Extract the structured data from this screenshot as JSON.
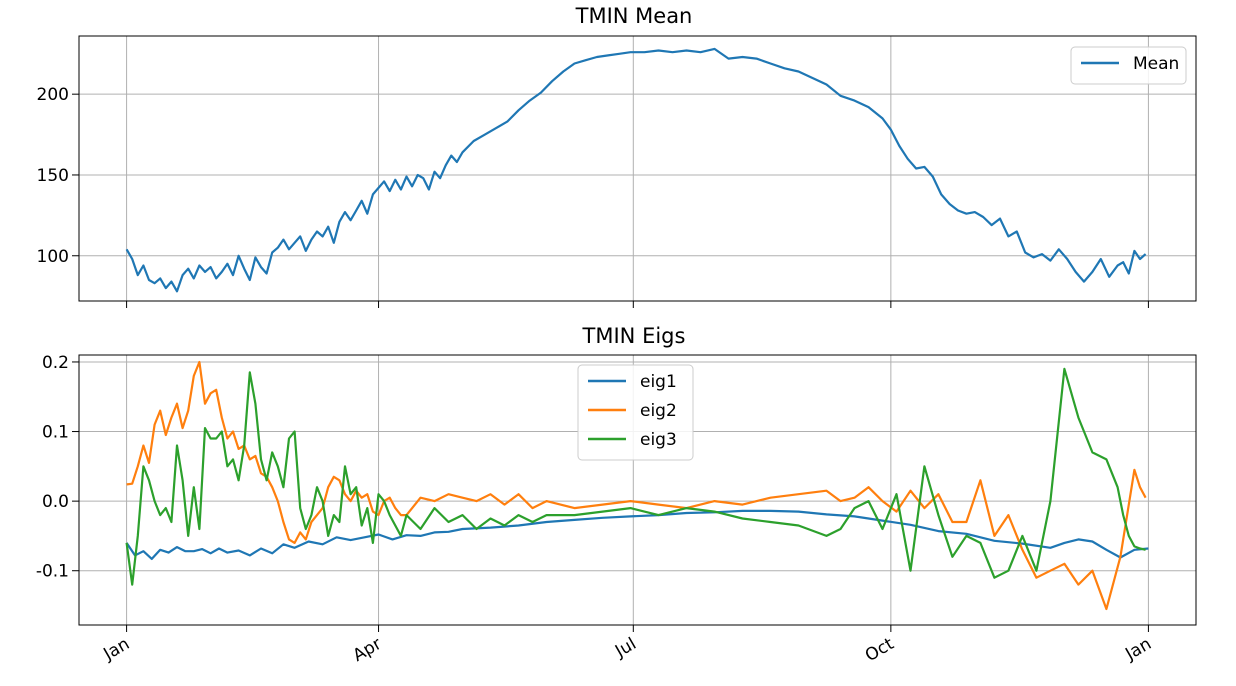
{
  "chart_data": [
    {
      "type": "line",
      "title": "TMIN Mean",
      "xlabel": "",
      "ylabel": "",
      "x_axis": {
        "ticks": [
          "Jan",
          "Apr",
          "Jul",
          "Oct",
          "Jan"
        ],
        "tick_days": [
          0,
          90,
          181,
          273,
          365
        ],
        "xlim": [
          -17,
          382
        ],
        "labels_shown": false
      },
      "ylim": [
        72,
        236
      ],
      "y_ticks": [
        100,
        150,
        200
      ],
      "grid": true,
      "legend": "top-right",
      "series": [
        {
          "name": "Mean",
          "color": "#1f77b4",
          "x": [
            0,
            2,
            4,
            6,
            8,
            10,
            12,
            14,
            16,
            18,
            20,
            22,
            24,
            26,
            28,
            30,
            32,
            34,
            36,
            38,
            40,
            42,
            44,
            46,
            48,
            50,
            52,
            54,
            56,
            58,
            60,
            62,
            64,
            66,
            68,
            70,
            72,
            74,
            76,
            78,
            80,
            82,
            84,
            86,
            88,
            90,
            92,
            94,
            96,
            98,
            100,
            102,
            104,
            106,
            108,
            110,
            112,
            114,
            116,
            118,
            120,
            124,
            128,
            132,
            136,
            140,
            144,
            148,
            152,
            156,
            160,
            164,
            168,
            172,
            176,
            180,
            185,
            190,
            195,
            200,
            205,
            210,
            215,
            220,
            225,
            230,
            235,
            240,
            245,
            250,
            255,
            260,
            265,
            270,
            273,
            276,
            279,
            282,
            285,
            288,
            291,
            294,
            297,
            300,
            303,
            306,
            309,
            312,
            315,
            318,
            321,
            324,
            327,
            330,
            333,
            336,
            339,
            342,
            345,
            348,
            351,
            354,
            356,
            358,
            360,
            362,
            364
          ],
          "y": [
            104,
            98,
            88,
            94,
            85,
            83,
            86,
            80,
            84,
            78,
            88,
            92,
            86,
            94,
            90,
            93,
            86,
            90,
            95,
            88,
            100,
            92,
            85,
            99,
            93,
            89,
            102,
            105,
            110,
            104,
            108,
            112,
            103,
            110,
            115,
            112,
            118,
            108,
            121,
            127,
            122,
            128,
            134,
            126,
            138,
            142,
            146,
            140,
            147,
            141,
            149,
            143,
            150,
            148,
            141,
            152,
            148,
            156,
            162,
            158,
            164,
            171,
            175,
            179,
            183,
            190,
            196,
            201,
            208,
            214,
            219,
            221,
            223,
            224,
            225,
            226,
            226,
            227,
            226,
            227,
            226,
            228,
            222,
            223,
            222,
            219,
            216,
            214,
            210,
            206,
            199,
            196,
            192,
            185,
            178,
            168,
            160,
            154,
            155,
            149,
            138,
            132,
            128,
            126,
            127,
            124,
            119,
            123,
            112,
            115,
            102,
            99,
            101,
            97,
            104,
            98,
            90,
            84,
            90,
            98,
            87,
            94,
            96,
            89,
            103,
            98,
            101
          ]
        }
      ]
    },
    {
      "type": "line",
      "title": "TMIN Eigs",
      "xlabel": "",
      "ylabel": "",
      "x_axis": {
        "ticks": [
          "Jan",
          "Apr",
          "Jul",
          "Oct",
          "Jan"
        ],
        "tick_days": [
          0,
          90,
          181,
          273,
          365
        ],
        "xlim": [
          -17,
          382
        ],
        "labels_shown": true
      },
      "ylim": [
        -0.178,
        0.21
      ],
      "y_ticks": [
        -0.1,
        0.0,
        0.1,
        0.2
      ],
      "grid": true,
      "legend": "top-center",
      "series": [
        {
          "name": "eig1",
          "color": "#1f77b4",
          "x": [
            0,
            3,
            6,
            9,
            12,
            15,
            18,
            21,
            24,
            27,
            30,
            33,
            36,
            40,
            44,
            48,
            52,
            56,
            60,
            65,
            70,
            75,
            80,
            85,
            90,
            95,
            100,
            105,
            110,
            115,
            120,
            130,
            140,
            150,
            160,
            170,
            180,
            190,
            200,
            210,
            220,
            230,
            240,
            250,
            260,
            270,
            280,
            290,
            300,
            310,
            320,
            330,
            335,
            340,
            345,
            350,
            355,
            360,
            365
          ],
          "x_note": "",
          "y": [
            -0.06,
            -0.078,
            -0.072,
            -0.083,
            -0.07,
            -0.074,
            -0.066,
            -0.072,
            -0.072,
            -0.069,
            -0.075,
            -0.068,
            -0.074,
            -0.071,
            -0.078,
            -0.068,
            -0.075,
            -0.062,
            -0.067,
            -0.058,
            -0.062,
            -0.052,
            -0.056,
            -0.052,
            -0.048,
            -0.055,
            -0.049,
            -0.05,
            -0.045,
            -0.044,
            -0.04,
            -0.038,
            -0.035,
            -0.03,
            -0.027,
            -0.024,
            -0.022,
            -0.02,
            -0.017,
            -0.016,
            -0.014,
            -0.014,
            -0.015,
            -0.019,
            -0.022,
            -0.028,
            -0.034,
            -0.043,
            -0.047,
            -0.057,
            -0.061,
            -0.067,
            -0.06,
            -0.055,
            -0.058,
            -0.07,
            -0.081,
            -0.07,
            -0.068
          ]
        },
        {
          "name": "eig2",
          "color": "#ff7f0e",
          "x": [
            0,
            2,
            4,
            6,
            8,
            10,
            12,
            14,
            16,
            18,
            20,
            22,
            24,
            26,
            28,
            30,
            32,
            34,
            36,
            38,
            40,
            42,
            44,
            46,
            48,
            50,
            52,
            54,
            56,
            58,
            60,
            62,
            64,
            66,
            68,
            70,
            72,
            74,
            76,
            78,
            80,
            82,
            84,
            86,
            88,
            90,
            92,
            94,
            96,
            98,
            100,
            105,
            110,
            115,
            120,
            125,
            130,
            135,
            140,
            145,
            150,
            160,
            170,
            180,
            190,
            200,
            210,
            220,
            230,
            240,
            250,
            255,
            260,
            265,
            270,
            275,
            280,
            285,
            290,
            295,
            300,
            305,
            310,
            315,
            320,
            325,
            330,
            335,
            340,
            345,
            350,
            355,
            360,
            362,
            364
          ],
          "y": [
            0.024,
            0.025,
            0.05,
            0.08,
            0.055,
            0.11,
            0.13,
            0.095,
            0.12,
            0.14,
            0.105,
            0.13,
            0.18,
            0.2,
            0.14,
            0.155,
            0.16,
            0.12,
            0.09,
            0.1,
            0.075,
            0.08,
            0.06,
            0.065,
            0.04,
            0.035,
            0.02,
            0.0,
            -0.03,
            -0.055,
            -0.06,
            -0.045,
            -0.055,
            -0.03,
            -0.02,
            -0.01,
            0.02,
            0.035,
            0.03,
            0.01,
            0.0,
            0.015,
            0.005,
            0.01,
            -0.015,
            -0.02,
            0.0,
            0.005,
            -0.01,
            -0.02,
            -0.02,
            0.005,
            0.0,
            0.01,
            0.005,
            0.0,
            0.01,
            -0.005,
            0.01,
            -0.01,
            0.0,
            -0.01,
            -0.005,
            0.0,
            -0.005,
            -0.01,
            0.0,
            -0.005,
            0.005,
            0.01,
            0.015,
            0.0,
            0.005,
            0.02,
            0.0,
            -0.015,
            0.015,
            -0.01,
            0.01,
            -0.03,
            -0.03,
            0.03,
            -0.05,
            -0.02,
            -0.07,
            -0.11,
            -0.1,
            -0.09,
            -0.12,
            -0.1,
            -0.155,
            -0.08,
            0.045,
            0.02,
            0.005
          ]
        },
        {
          "name": "eig3",
          "color": "#2ca02c",
          "x": [
            0,
            2,
            4,
            6,
            8,
            10,
            12,
            14,
            16,
            18,
            20,
            22,
            24,
            26,
            28,
            30,
            32,
            34,
            36,
            38,
            40,
            42,
            44,
            46,
            48,
            50,
            52,
            54,
            56,
            58,
            60,
            62,
            64,
            66,
            68,
            70,
            72,
            74,
            76,
            78,
            80,
            82,
            84,
            86,
            88,
            90,
            92,
            94,
            96,
            98,
            100,
            105,
            110,
            115,
            120,
            125,
            130,
            135,
            140,
            145,
            150,
            160,
            170,
            180,
            190,
            200,
            210,
            220,
            230,
            240,
            250,
            255,
            260,
            265,
            270,
            275,
            280,
            285,
            290,
            295,
            300,
            305,
            310,
            315,
            320,
            325,
            330,
            335,
            340,
            345,
            350,
            352,
            354,
            356,
            358,
            360,
            362,
            364
          ],
          "y": [
            -0.06,
            -0.12,
            -0.05,
            0.05,
            0.03,
            0.0,
            -0.02,
            -0.01,
            -0.03,
            0.08,
            0.03,
            -0.05,
            0.02,
            -0.04,
            0.105,
            0.09,
            0.09,
            0.1,
            0.05,
            0.06,
            0.03,
            0.08,
            0.185,
            0.14,
            0.06,
            0.03,
            0.07,
            0.05,
            0.02,
            0.09,
            0.1,
            -0.01,
            -0.04,
            -0.02,
            0.02,
            0.0,
            -0.05,
            -0.02,
            -0.03,
            0.05,
            0.01,
            0.02,
            -0.035,
            -0.01,
            -0.06,
            0.01,
            0.0,
            -0.02,
            -0.035,
            -0.05,
            -0.02,
            -0.04,
            -0.01,
            -0.03,
            -0.02,
            -0.04,
            -0.025,
            -0.035,
            -0.02,
            -0.03,
            -0.02,
            -0.02,
            -0.015,
            -0.01,
            -0.02,
            -0.01,
            -0.015,
            -0.025,
            -0.03,
            -0.035,
            -0.05,
            -0.04,
            -0.01,
            0.0,
            -0.04,
            0.01,
            -0.1,
            0.05,
            -0.02,
            -0.08,
            -0.05,
            -0.06,
            -0.11,
            -0.1,
            -0.05,
            -0.1,
            0.0,
            0.19,
            0.12,
            0.07,
            0.06,
            0.04,
            0.02,
            -0.02,
            -0.05,
            -0.065,
            -0.068,
            -0.07
          ]
        }
      ]
    }
  ]
}
